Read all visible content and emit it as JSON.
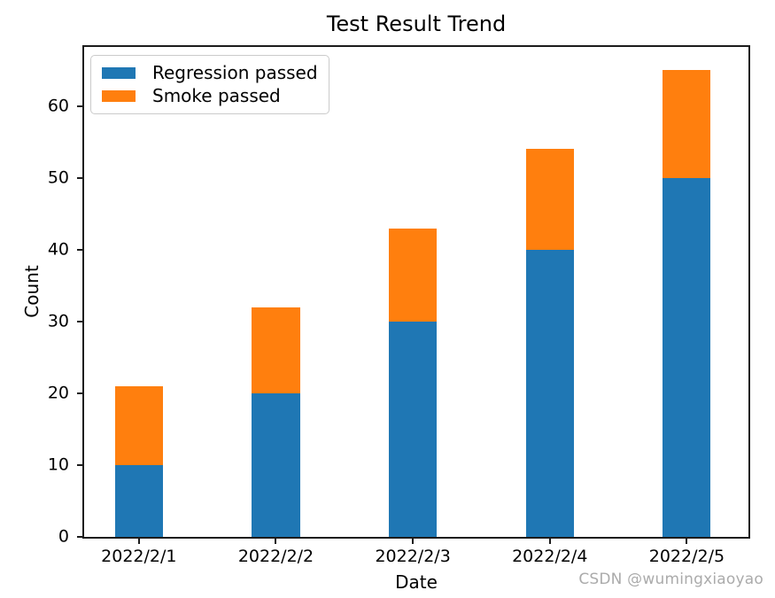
{
  "figure": {
    "background": "#ffffff",
    "watermark": {
      "text": "CSDN @wumingxiaoyao",
      "color": "#ababab"
    }
  },
  "chart_data": {
    "type": "bar",
    "stacked": true,
    "title": "Test Result Trend",
    "xlabel": "Date",
    "ylabel": "Count",
    "categories": [
      "2022/2/1",
      "2022/2/2",
      "2022/2/3",
      "2022/2/4",
      "2022/2/5"
    ],
    "series": [
      {
        "name": "Regression passed",
        "color": "#1f77b4",
        "values": [
          10,
          20,
          30,
          40,
          50
        ]
      },
      {
        "name": "Smoke passed",
        "color": "#ff7f0e",
        "values": [
          11,
          12,
          13,
          14,
          15
        ]
      }
    ],
    "stacked_totals": [
      21,
      32,
      43,
      54,
      65
    ],
    "ylim": [
      0,
      68.25
    ],
    "yticks": [
      0,
      10,
      20,
      30,
      40,
      50,
      60
    ],
    "xlim": [
      -0.4,
      4.45
    ],
    "bar_width": 0.35,
    "grid": false,
    "legend_position": "upper-left",
    "spine_color": "#1c1c1c"
  }
}
